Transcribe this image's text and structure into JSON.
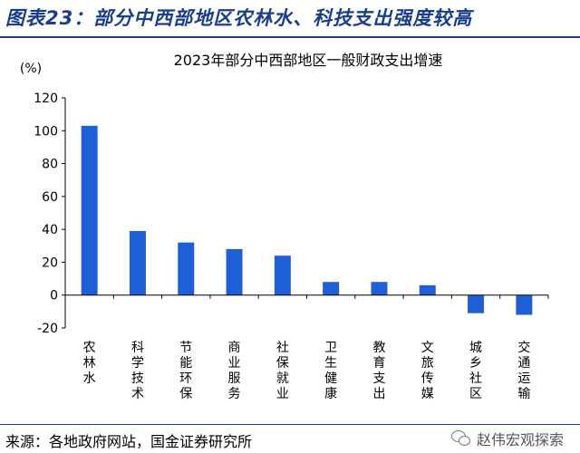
{
  "figure_title": "图表23：部分中西部地区农林水、科技支出强度较高",
  "source": "来源：各地政府网站，国金证券研究所",
  "watermark": "赵伟宏观探索",
  "chart_data": {
    "type": "bar",
    "title": "2023年部分中西部地区一般财政支出增速",
    "ylabel": "(%)",
    "xlabel": "",
    "ylim": [
      -20,
      120
    ],
    "yticks": [
      -20,
      0,
      20,
      40,
      60,
      80,
      100,
      120
    ],
    "categories": [
      "农林水",
      "科学技术",
      "节能环保",
      "商业服务",
      "社保就业",
      "卫生健康",
      "教育支出",
      "文旅传媒",
      "城乡社区",
      "交通运输"
    ],
    "values": [
      103,
      39,
      32,
      28,
      24,
      8,
      8,
      6,
      -11,
      -12
    ],
    "bar_color": "#1f5fd6",
    "grid": false,
    "legend": "none"
  }
}
